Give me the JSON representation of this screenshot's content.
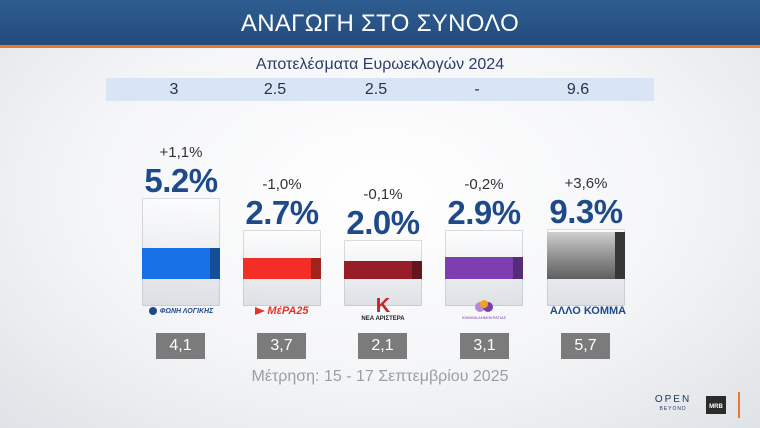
{
  "header": {
    "title": "ΑΝΑΓΩΓΗ ΣΤΟ ΣΥΝΟΛΟ"
  },
  "reference": {
    "label": "Αποτελέσματα Ευρωεκλογών 2024",
    "values": [
      "3",
      "2.5",
      "2.5",
      "-",
      "9.6"
    ]
  },
  "chart_data": {
    "type": "bar",
    "categories": [
      "ΦΩΝΗ ΛΟΓΙΚΗΣ",
      "ΜέΡΑ25",
      "ΝΕΑ ΑΡΙΣΤΕΡΑ",
      "ΚΙΝΗΜΑ ΔΗΜΟΚΡΑΤΙΑΣ",
      "ΑΛΛΟ ΚΟΜΜΑ"
    ],
    "values": [
      5.2,
      2.7,
      2.0,
      2.9,
      9.3
    ],
    "value_labels": [
      "5.2%",
      "2.7%",
      "2.0%",
      "2.9%",
      "9.3%"
    ],
    "changes": [
      "+1,1%",
      "-1,0%",
      "-0,1%",
      "-0,2%",
      "+3,6%"
    ],
    "previous": [
      "4,1",
      "3,7",
      "2,1",
      "3,1",
      "5,7"
    ],
    "colors": [
      "#1e6fd9",
      "#e5322b",
      "#8e1f2a",
      "#7a3fa8",
      "#7f7f7f"
    ],
    "ylim": [
      0,
      9.3
    ]
  },
  "logos": {
    "p0": "ΦΩΝΗ ΛΟΓΙΚΗΣ",
    "p1": "MέΡΑ25",
    "p2_mark": "K",
    "p2_text": "ΝΕΑ ΑΡΙΣΤΕΡΑ",
    "p3_text": "ΚΙΝΗΜΑ ΔΗΜΟΚΡΑΤΙΑΣ",
    "p4": "ΑΛΛΟ ΚΟΜΜΑ"
  },
  "footer": {
    "note": "Μέτρηση: 15 - 17 Σεπτεμβρίου 2025",
    "open_logo": "OPEN",
    "open_sub": "BEYOND",
    "mrb": "MRB"
  }
}
